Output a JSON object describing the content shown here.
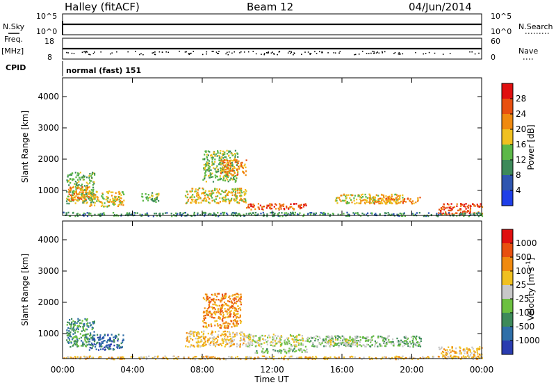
{
  "header": {
    "station": "Halley (fitACF)",
    "beam": "Beam 12",
    "date": "04/Jun/2014"
  },
  "panel_labels": {
    "nsky": "N.Sky",
    "nsearch": "N.Search",
    "freq_top": "Freq.",
    "freq_unit": "[MHz]",
    "nave": "Nave",
    "cpid": "CPID",
    "cpid_text": "normal (fast) 151",
    "nsky_tick_hi": "10^5",
    "nsky_tick_lo": "10^0",
    "freq_tick_hi": "18",
    "freq_tick_lo": "8",
    "nave_tick_hi": "60",
    "nave_tick_lo": "0"
  },
  "axes": {
    "ylabel": "Slant Range [km]",
    "xlabel": "Time UT",
    "x_ticks": [
      "00:00",
      "04:00",
      "08:00",
      "12:00",
      "16:00",
      "20:00",
      "00:00"
    ],
    "y_ticks": [
      "1000",
      "2000",
      "3000",
      "4000"
    ]
  },
  "colorbars": {
    "power": {
      "label": "Power [dB]",
      "ticks": [
        "4",
        "8",
        "12",
        "16",
        "20",
        "24",
        "28"
      ],
      "colors": [
        "#1f3fe8",
        "#2f56b0",
        "#3d8a5a",
        "#5cb848",
        "#f0c020",
        "#f08a10",
        "#e85010",
        "#e01010"
      ]
    },
    "velocity": {
      "label": "Velocity [m s",
      "label_sup": "-1",
      "label_end": "]",
      "ticks": [
        "1000",
        "500",
        "100",
        "25",
        "-25",
        "-100",
        "-500",
        "-1000"
      ],
      "colors": [
        "#2a3cb0",
        "#2f6fa8",
        "#3d8a5a",
        "#6cc040",
        "#c8c8c8",
        "#f0c020",
        "#f08a10",
        "#e85010",
        "#e01010"
      ]
    }
  },
  "chart_data": [
    {
      "type": "heatmap",
      "name": "",
      "x_unit": "hours UT",
      "xlim": [
        0,
        24
      ],
      "ylim": [
        200,
        4600
      ],
      "blobs": [
        {
          "t0": 0.2,
          "t1": 1.8,
          "r0": 600,
          "r1": 1600,
          "level": 3
        },
        {
          "t0": 0.3,
          "t1": 1.5,
          "r0": 700,
          "r1": 1150,
          "level": 5
        },
        {
          "t0": 1.5,
          "t1": 3.5,
          "r0": 500,
          "r1": 1000,
          "level": 4
        },
        {
          "t0": 4.5,
          "t1": 5.5,
          "r0": 650,
          "r1": 950,
          "level": 3
        },
        {
          "t0": 7.0,
          "t1": 10.5,
          "r0": 600,
          "r1": 1100,
          "level": 4
        },
        {
          "t0": 8.0,
          "t1": 10.0,
          "r0": 1300,
          "r1": 2300,
          "level": 3
        },
        {
          "t0": 9.0,
          "t1": 10.5,
          "r0": 1500,
          "r1": 2000,
          "level": 5
        },
        {
          "t0": 10.5,
          "t1": 14.0,
          "r0": 400,
          "r1": 600,
          "level": 6
        },
        {
          "t0": 15.5,
          "t1": 19.5,
          "r0": 600,
          "r1": 900,
          "level": 4
        },
        {
          "t0": 17.5,
          "t1": 20.5,
          "r0": 600,
          "r1": 800,
          "level": 5
        },
        {
          "t0": 21.5,
          "t1": 24.0,
          "r0": 250,
          "r1": 600,
          "level": 6
        },
        {
          "t0": 0.0,
          "t1": 24.0,
          "r0": 200,
          "r1": 320,
          "level": 2
        }
      ]
    },
    {
      "type": "heatmap",
      "name": "",
      "x_unit": "hours UT",
      "xlim": [
        0,
        24
      ],
      "ylim": [
        200,
        4600
      ],
      "blobs": [
        {
          "t0": 0.2,
          "t1": 1.8,
          "r0": 600,
          "r1": 1500,
          "level": 2
        },
        {
          "t0": 1.5,
          "t1": 3.5,
          "r0": 500,
          "r1": 1000,
          "level": 1
        },
        {
          "t0": 7.0,
          "t1": 10.5,
          "r0": 600,
          "r1": 1100,
          "level": 5
        },
        {
          "t0": 8.0,
          "t1": 10.2,
          "r0": 1200,
          "r1": 2300,
          "level": 6
        },
        {
          "t0": 10.5,
          "t1": 14.0,
          "r0": 600,
          "r1": 1000,
          "level": 4
        },
        {
          "t0": 11.0,
          "t1": 14.0,
          "r0": 400,
          "r1": 550,
          "level": 3
        },
        {
          "t0": 14.0,
          "t1": 20.5,
          "r0": 600,
          "r1": 950,
          "level": 3
        },
        {
          "t0": 15.0,
          "t1": 17.0,
          "r0": 650,
          "r1": 850,
          "level": 4
        },
        {
          "t0": 21.5,
          "t1": 24.0,
          "r0": 250,
          "r1": 600,
          "level": 5
        },
        {
          "t0": 0.0,
          "t1": 24.0,
          "r0": 200,
          "r1": 300,
          "level": 5
        }
      ]
    }
  ]
}
